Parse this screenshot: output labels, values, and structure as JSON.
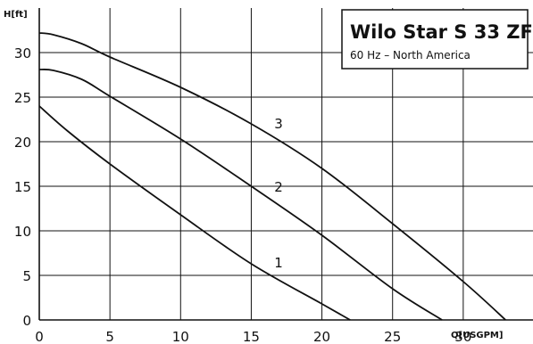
{
  "chart_data": {
    "type": "line",
    "title": "Wilo Star S 33 ZF",
    "subtitle": "60 Hz – North America",
    "xlabel": "Q[USGPM]",
    "ylabel": "H[ft]",
    "xlim": [
      0,
      35
    ],
    "ylim": [
      0,
      35
    ],
    "xticks": [
      0,
      5,
      10,
      15,
      20,
      25,
      30
    ],
    "yticks": [
      0,
      5,
      10,
      15,
      20,
      25,
      30
    ],
    "grid": true,
    "series": [
      {
        "name": "1",
        "x": [
          0,
          2,
          5,
          10,
          15,
          20,
          22
        ],
        "y": [
          24,
          21.2,
          17.5,
          11.8,
          6.3,
          1.8,
          0
        ]
      },
      {
        "name": "2",
        "x": [
          0,
          1,
          3,
          5,
          10,
          15,
          20,
          25,
          28.5
        ],
        "y": [
          28.1,
          28,
          27,
          25.1,
          20.3,
          15,
          9.5,
          3.5,
          0
        ]
      },
      {
        "name": "3",
        "x": [
          0,
          1,
          3,
          5,
          10,
          15,
          20,
          25,
          30,
          33
        ],
        "y": [
          32.2,
          32,
          31,
          29.5,
          26.1,
          22,
          17,
          10.8,
          4.3,
          0
        ]
      }
    ]
  }
}
